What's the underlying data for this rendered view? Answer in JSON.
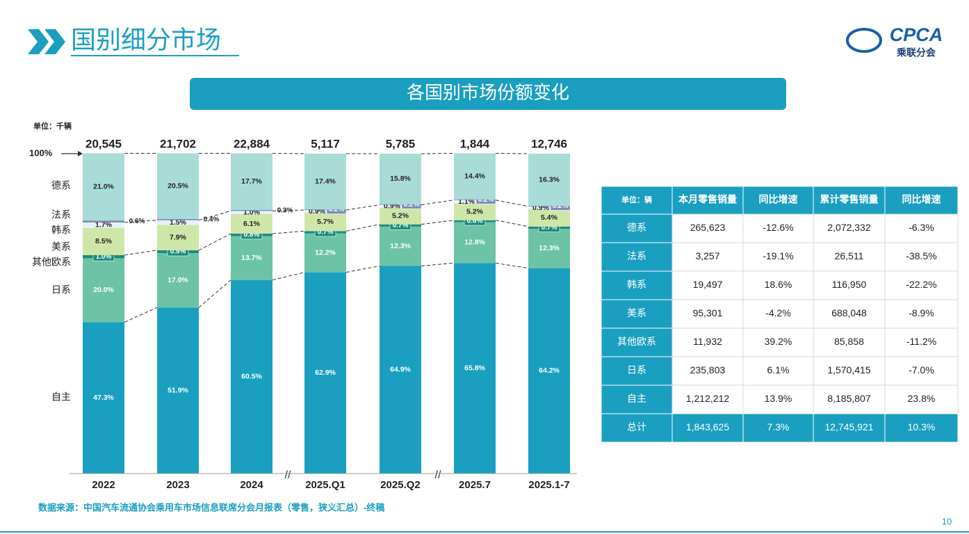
{
  "header": {
    "title": "国别细分市场",
    "logo": "CPCA",
    "logo_subtitle": "乘联分会"
  },
  "banner": "各国别市场份额变化",
  "chart_data": {
    "type": "stacked-bar",
    "unit": "单位：千辆",
    "categories": [
      "2022",
      "2023",
      "2024",
      "2025.Q1",
      "2025.Q2",
      "2025.7",
      "2025.1-7"
    ],
    "totals": {
      "values": [
        20545,
        21702,
        22884,
        5117,
        5785,
        1844,
        12746
      ],
      "value_labels": [
        "20,545",
        "21,702",
        "22,884",
        "5,117",
        "5,785",
        "1,844",
        "12,746"
      ]
    },
    "ylim": [
      0,
      100
    ],
    "yticks": [
      {
        "value": 100,
        "label": "100%"
      }
    ],
    "series": [
      {
        "name": "自主",
        "color": "#1a9fc0",
        "values": [
          47.3,
          51.9,
          60.5,
          62.9,
          64.9,
          65.8,
          64.2
        ],
        "value_labels": [
          "47.3%",
          "51.9%",
          "60.5%",
          "62.9%",
          "64.9%",
          "65.8%",
          "64.2%"
        ]
      },
      {
        "name": "日系",
        "color": "#6cc3a6",
        "values": [
          20.0,
          17.0,
          13.7,
          12.2,
          12.3,
          12.8,
          12.3
        ],
        "value_labels": [
          "20.0%",
          "17.0%",
          "13.7%",
          "12.2%",
          "12.3%",
          "12.8%",
          "12.3%"
        ]
      },
      {
        "name": "其他欧系",
        "color": "#1b8a7e",
        "values": [
          1.0,
          0.9,
          0.8,
          0.7,
          0.7,
          0.6,
          0.7
        ],
        "value_labels": [
          "1.0%",
          "0.9%",
          "0.8%",
          "0.7%",
          "0.7%",
          "0.6%",
          "0.7%"
        ]
      },
      {
        "name": "美系",
        "color": "#cfe6a9",
        "values": [
          8.5,
          7.9,
          6.1,
          5.7,
          5.2,
          5.2,
          5.4
        ],
        "value_labels": [
          "8.5%",
          "7.9%",
          "6.1%",
          "5.7%",
          "5.2%",
          "5.2%",
          "5.4%"
        ]
      },
      {
        "name": "韩系",
        "color": "#e9f1f4",
        "values": [
          1.7,
          1.5,
          1.0,
          0.9,
          0.9,
          1.1,
          0.9
        ],
        "value_labels": [
          "1.7%",
          "1.5%",
          "1.0%",
          "0.9%",
          "0.9%",
          "1.1%",
          "0.9%"
        ]
      },
      {
        "name": "法系",
        "color": "#7a8cbf",
        "values": [
          0.6,
          0.4,
          0.3,
          0.2,
          0.2,
          0.2,
          0.2
        ],
        "value_labels": [
          "0.6%",
          "0.4%",
          "0.3%",
          "0.2%",
          "0.2%",
          "0.2%",
          "0.2%"
        ]
      },
      {
        "name": "德系",
        "color": "#a9dcd6",
        "values": [
          21.0,
          20.5,
          17.7,
          17.4,
          15.8,
          14.4,
          16.3
        ],
        "value_labels": [
          "21.0%",
          "20.5%",
          "17.7%",
          "17.4%",
          "15.8%",
          "14.4%",
          "16.3%"
        ]
      }
    ]
  },
  "table": {
    "header": [
      "单位：辆",
      "本月零售销量",
      "同比增速",
      "累计零售销量",
      "同比增速"
    ],
    "rows": [
      [
        "德系",
        "265,623",
        "-12.6%",
        "2,072,332",
        "-6.3%"
      ],
      [
        "法系",
        "3,257",
        "-19.1%",
        "26,511",
        "-38.5%"
      ],
      [
        "韩系",
        "19,497",
        "18.6%",
        "116,950",
        "-22.2%"
      ],
      [
        "美系",
        "95,301",
        "-4.2%",
        "688,048",
        "-8.9%"
      ],
      [
        "其他欧系",
        "11,932",
        "39.2%",
        "85,858",
        "-11.2%"
      ],
      [
        "日系",
        "235,803",
        "6.1%",
        "1,570,415",
        "-7.0%"
      ],
      [
        "自主",
        "1,212,212",
        "13.9%",
        "8,185,807",
        "23.8%"
      ],
      [
        "总计",
        "1,843,625",
        "7.3%",
        "12,745,921",
        "10.3%"
      ]
    ]
  },
  "source": "数据来源：中国汽车流通协会乘用车市场信息联席分会月报表（零售，狭义汇总）-终稿",
  "page_number": "10"
}
